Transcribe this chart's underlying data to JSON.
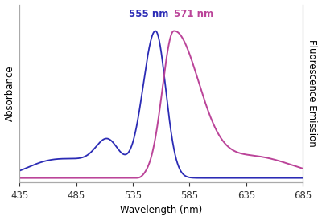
{
  "xmin": 435,
  "xmax": 685,
  "xticks": [
    435,
    485,
    535,
    585,
    635,
    685
  ],
  "xlabel": "Wavelength (nm)",
  "ylabel_left": "Absorbance",
  "ylabel_right": "Fluorescence Emission",
  "abs_peak_nm": 555,
  "abs_peak_label": "555 nm",
  "em_peak_nm": 571,
  "em_peak_label": "571 nm",
  "abs_color": "#2B2BB5",
  "em_color": "#BB4499",
  "abs_label_color": "#2B2BB5",
  "em_label_color": "#BB4499",
  "background_color": "#FFFFFF",
  "spine_color": "#AAAAAA"
}
